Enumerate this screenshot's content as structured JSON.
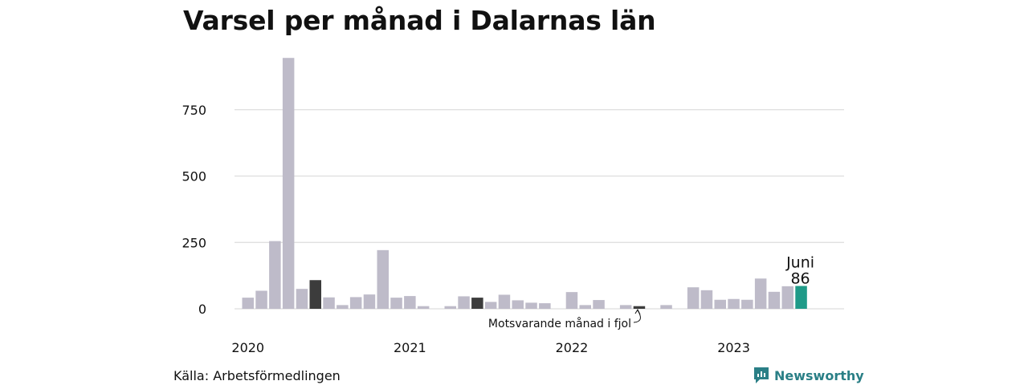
{
  "title": "Varsel per månad i Dalarnas län",
  "source": "Källa: Arbetsförmedlingen",
  "brand": "Newsworthy",
  "colors": {
    "bar": "#bebbc9",
    "highlight": "#3c3c3c",
    "current": "#1f9a88",
    "grid": "#dddddd",
    "brand": "#2a7f86"
  },
  "chart_data": {
    "type": "bar",
    "ylim": [
      0,
      1000
    ],
    "yticks": [
      0,
      250,
      500,
      750
    ],
    "year_labels": [
      {
        "label": "2020",
        "index": 0
      },
      {
        "label": "2021",
        "index": 12
      },
      {
        "label": "2022",
        "index": 24
      },
      {
        "label": "2023",
        "index": 36
      }
    ],
    "values": [
      42,
      68,
      255,
      945,
      75,
      108,
      43,
      14,
      44,
      54,
      221,
      42,
      48,
      10,
      0,
      10,
      47,
      42,
      26,
      53,
      32,
      23,
      21,
      0,
      63,
      14,
      33,
      0,
      14,
      10,
      0,
      14,
      0,
      81,
      70,
      34,
      37,
      34,
      114,
      64,
      85,
      86
    ],
    "highlight_indices": [
      5,
      17,
      29
    ],
    "current_index": 41,
    "current_label": {
      "month": "Juni",
      "value": "86"
    },
    "annotation": {
      "text": "Motsvarande månad i fjol",
      "index": 29
    }
  }
}
